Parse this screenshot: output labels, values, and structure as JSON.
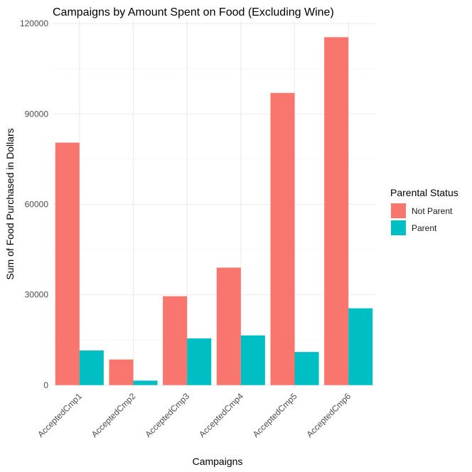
{
  "chart_data": {
    "type": "bar",
    "title": "Campaigns by Amount Spent on Food (Excluding Wine)",
    "xlabel": "Campaigns",
    "ylabel": "Sum of Food Purchased in Dollars",
    "categories": [
      "AcceptedCmp1",
      "AcceptedCmp2",
      "AcceptedCmp3",
      "AcceptedCmp4",
      "AcceptedCmp5",
      "AcceptedCmp6"
    ],
    "series": [
      {
        "name": "Not Parent",
        "color": "#F8766D",
        "values": [
          80500,
          8500,
          29500,
          39000,
          97000,
          115500
        ]
      },
      {
        "name": "Parent",
        "color": "#00BFC4",
        "values": [
          11500,
          1500,
          15500,
          16500,
          11000,
          25500
        ]
      }
    ],
    "ylim": [
      -1000,
      121000
    ],
    "yticks": [
      0,
      30000,
      60000,
      90000,
      120000
    ],
    "ytick_labels": [
      "0",
      "30000",
      "60000",
      "90000",
      "120000"
    ],
    "legend": {
      "title": "Parental Status",
      "position": "right"
    },
    "grid": true
  }
}
